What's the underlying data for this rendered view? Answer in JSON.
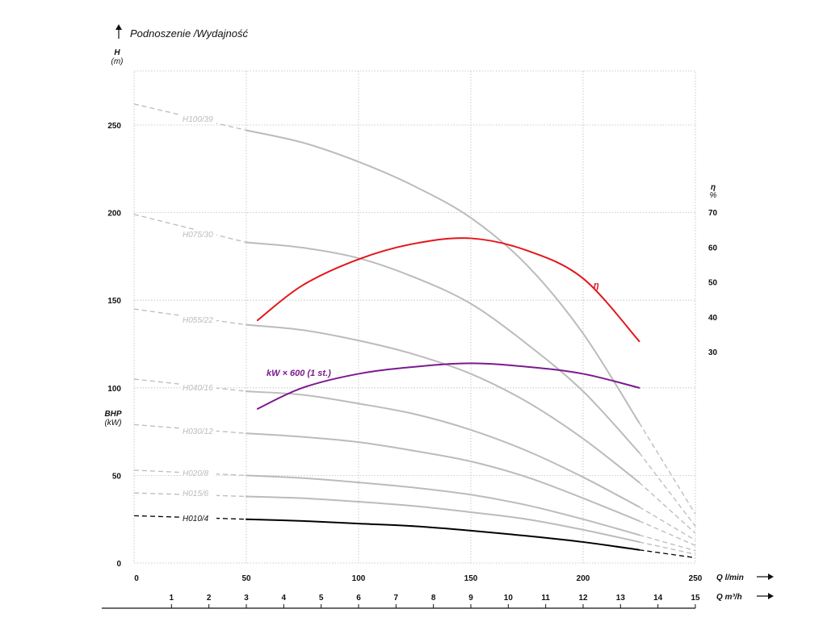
{
  "chart_data": {
    "type": "line",
    "title": "Podnoszenie /Wydajność",
    "ylabel": "H",
    "yunit": "(m)",
    "y2label": "η",
    "y2unit": "%",
    "bhp_label": "BHP",
    "bhp_unit": "(kW)",
    "xlabel": "Q",
    "xunit": "l/min",
    "x2label": "Q",
    "x2unit": "m³/h",
    "xlim": [
      0,
      250
    ],
    "ylim": [
      0,
      260
    ],
    "y2lim": [
      30,
      70
    ],
    "x_ticks": [
      0,
      50,
      100,
      150,
      200,
      250
    ],
    "y_ticks": [
      0,
      50,
      100,
      150,
      200,
      250
    ],
    "y2_ticks": [
      30,
      40,
      50,
      60,
      70
    ],
    "x2_ticks": [
      1,
      2,
      3,
      4,
      5,
      6,
      7,
      8,
      9,
      10,
      11,
      12,
      13,
      14,
      15
    ],
    "grid": true,
    "series": [
      {
        "name": "H100/39",
        "color": "#bbbbbb",
        "dashed": [
          [
            0,
            262
          ],
          [
            50,
            247
          ]
        ],
        "values": [
          [
            50,
            247
          ],
          [
            75,
            240
          ],
          [
            100,
            229
          ],
          [
            125,
            215
          ],
          [
            150,
            197
          ],
          [
            175,
            170
          ],
          [
            200,
            131
          ],
          [
            225,
            80
          ]
        ],
        "dashed_end": [
          [
            225,
            80
          ],
          [
            250,
            28
          ]
        ]
      },
      {
        "name": "H075/30",
        "color": "#bbbbbb",
        "dashed": [
          [
            0,
            199
          ],
          [
            50,
            183
          ]
        ],
        "values": [
          [
            50,
            183
          ],
          [
            75,
            180
          ],
          [
            100,
            174
          ],
          [
            125,
            163
          ],
          [
            150,
            148
          ],
          [
            175,
            125
          ],
          [
            200,
            98
          ],
          [
            225,
            63
          ]
        ],
        "dashed_end": [
          [
            225,
            63
          ],
          [
            250,
            21
          ]
        ]
      },
      {
        "name": "H055/22",
        "color": "#bbbbbb",
        "dashed": [
          [
            0,
            145
          ],
          [
            50,
            136
          ]
        ],
        "values": [
          [
            50,
            136
          ],
          [
            75,
            133
          ],
          [
            100,
            127
          ],
          [
            125,
            119
          ],
          [
            150,
            108
          ],
          [
            175,
            92
          ],
          [
            200,
            71
          ],
          [
            225,
            46
          ]
        ],
        "dashed_end": [
          [
            225,
            46
          ],
          [
            250,
            17
          ]
        ]
      },
      {
        "name": "H040/16",
        "color": "#bbbbbb",
        "dashed": [
          [
            0,
            105
          ],
          [
            50,
            98
          ]
        ],
        "values": [
          [
            50,
            98
          ],
          [
            75,
            96
          ],
          [
            100,
            91
          ],
          [
            125,
            85
          ],
          [
            150,
            76
          ],
          [
            175,
            64
          ],
          [
            200,
            49
          ],
          [
            225,
            32
          ]
        ],
        "dashed_end": [
          [
            225,
            32
          ],
          [
            250,
            13
          ]
        ]
      },
      {
        "name": "H030/12",
        "color": "#bbbbbb",
        "dashed": [
          [
            0,
            79
          ],
          [
            50,
            74
          ]
        ],
        "values": [
          [
            50,
            74
          ],
          [
            75,
            72
          ],
          [
            100,
            69
          ],
          [
            125,
            64
          ],
          [
            150,
            58
          ],
          [
            175,
            49
          ],
          [
            200,
            37
          ],
          [
            225,
            24
          ]
        ],
        "dashed_end": [
          [
            225,
            24
          ],
          [
            250,
            10
          ]
        ]
      },
      {
        "name": "H020/8",
        "color": "#bbbbbb",
        "dashed": [
          [
            0,
            53
          ],
          [
            50,
            50
          ]
        ],
        "values": [
          [
            50,
            50
          ],
          [
            75,
            48.5
          ],
          [
            100,
            46
          ],
          [
            125,
            43
          ],
          [
            150,
            39
          ],
          [
            175,
            33
          ],
          [
            200,
            25
          ],
          [
            225,
            16
          ]
        ],
        "dashed_end": [
          [
            225,
            16
          ],
          [
            250,
            7
          ]
        ]
      },
      {
        "name": "H015/6",
        "color": "#bbbbbb",
        "dashed": [
          [
            0,
            40
          ],
          [
            50,
            38
          ]
        ],
        "values": [
          [
            50,
            38
          ],
          [
            75,
            37
          ],
          [
            100,
            35
          ],
          [
            125,
            32.5
          ],
          [
            150,
            29
          ],
          [
            175,
            25
          ],
          [
            200,
            19
          ],
          [
            225,
            12
          ]
        ],
        "dashed_end": [
          [
            225,
            12
          ],
          [
            250,
            5
          ]
        ]
      },
      {
        "name": "H010/4",
        "color": "#000000",
        "dashed": [
          [
            0,
            27
          ],
          [
            50,
            25
          ]
        ],
        "values": [
          [
            50,
            25
          ],
          [
            75,
            24
          ],
          [
            100,
            22.5
          ],
          [
            125,
            21
          ],
          [
            150,
            18.5
          ],
          [
            175,
            15.5
          ],
          [
            200,
            12
          ],
          [
            225,
            7.5
          ]
        ],
        "dashed_end": [
          [
            225,
            7.5
          ],
          [
            250,
            3
          ]
        ]
      },
      {
        "name": "η",
        "color": "#e3161b",
        "axis": "y2",
        "values": [
          [
            55,
            39
          ],
          [
            75,
            49
          ],
          [
            100,
            56.5
          ],
          [
            125,
            61
          ],
          [
            150,
            62.5
          ],
          [
            175,
            59
          ],
          [
            200,
            51
          ],
          [
            225,
            33
          ]
        ]
      },
      {
        "name": "kW × 600 (1 st.)",
        "color": "#7b1a8f",
        "axis": "y",
        "values": [
          [
            55,
            88
          ],
          [
            75,
            100
          ],
          [
            100,
            108
          ],
          [
            125,
            112
          ],
          [
            150,
            114
          ],
          [
            175,
            112
          ],
          [
            200,
            108
          ],
          [
            225,
            100
          ]
        ]
      }
    ]
  }
}
